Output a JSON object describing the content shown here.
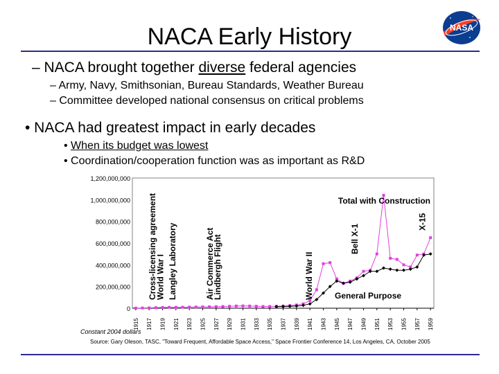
{
  "slide": {
    "title": "NACA Early History",
    "bullet1": {
      "pre": "– NACA brought together ",
      "underlined": "diverse",
      "post": " federal agencies"
    },
    "sub1": "– Army, Navy, Smithsonian, Bureau Standards, Weather Bureau",
    "sub2": "– Committee developed national consensus on critical problems",
    "bullet2": "• NACA had greatest impact in early decades",
    "sub3": {
      "pre": "• ",
      "underlined": "When its budget was lowest"
    },
    "sub4": "• Coordination/cooperation function was as important as R&D",
    "footer_note": "Constant 2004 dollars",
    "source": "Source: Gary Oleson, TASC, \"Toward Frequent, Affordable Space Access,\" Space Frontier Conference 14, Los Angeles, CA, October 2005",
    "logo_text": "NASA"
  },
  "colors": {
    "rule": "#2b2b8c",
    "total_series": "#e040e0",
    "general_series": "#000000",
    "logo_blue": "#0b3d91",
    "logo_red": "#fc3d21"
  },
  "chart_data": {
    "type": "line",
    "ylim": [
      0,
      1200000000
    ],
    "xlim": [
      1915,
      1959
    ],
    "yticks": [
      "0",
      "200,000,000",
      "400,000,000",
      "600,000,000",
      "800,000,000",
      "1,000,000,000",
      "1,200,000,000"
    ],
    "ytick_values": [
      0,
      200000000,
      400000000,
      600000000,
      800000000,
      1000000000,
      1200000000
    ],
    "xticks": [
      "1915",
      "1917",
      "1919",
      "1921",
      "1923",
      "1925",
      "1927",
      "1929",
      "1931",
      "1933",
      "1935",
      "1937",
      "1939",
      "1941",
      "1943",
      "1945",
      "1947",
      "1949",
      "1951",
      "1953",
      "1955",
      "1957",
      "1959"
    ],
    "xtick_values": [
      1915,
      1917,
      1919,
      1921,
      1923,
      1925,
      1927,
      1929,
      1931,
      1933,
      1935,
      1937,
      1939,
      1941,
      1943,
      1945,
      1947,
      1949,
      1951,
      1953,
      1955,
      1957,
      1959
    ],
    "series": [
      {
        "name": "Total with Construction",
        "marker": "square",
        "x": [
          1915,
          1916,
          1917,
          1918,
          1919,
          1920,
          1921,
          1922,
          1923,
          1924,
          1925,
          1926,
          1927,
          1928,
          1929,
          1930,
          1931,
          1932,
          1933,
          1934,
          1935,
          1936,
          1937,
          1938,
          1939,
          1940,
          1941,
          1942,
          1943,
          1944,
          1945,
          1946,
          1947,
          1948,
          1949,
          1950,
          1951,
          1952,
          1953,
          1954,
          1955,
          1956,
          1957,
          1958,
          1959
        ],
        "values": [
          1000000,
          2000000,
          3000000,
          5000000,
          7000000,
          8000000,
          8000000,
          9000000,
          10000000,
          11000000,
          12000000,
          13000000,
          14000000,
          16000000,
          18000000,
          20000000,
          21000000,
          20000000,
          18000000,
          16000000,
          16000000,
          18000000,
          20000000,
          24000000,
          30000000,
          40000000,
          70000000,
          170000000,
          410000000,
          420000000,
          270000000,
          230000000,
          250000000,
          280000000,
          340000000,
          350000000,
          500000000,
          1040000000,
          460000000,
          450000000,
          400000000,
          380000000,
          490000000,
          500000000,
          650000000
        ]
      },
      {
        "name": "General Purpose",
        "marker": "diamond",
        "x": [
          1936,
          1937,
          1938,
          1939,
          1940,
          1941,
          1942,
          1943,
          1944,
          1945,
          1946,
          1947,
          1948,
          1949,
          1950,
          1951,
          1952,
          1953,
          1954,
          1955,
          1956,
          1957,
          1958,
          1959
        ],
        "values": [
          14000000,
          16000000,
          18000000,
          20000000,
          26000000,
          40000000,
          80000000,
          140000000,
          200000000,
          250000000,
          230000000,
          240000000,
          270000000,
          300000000,
          340000000,
          340000000,
          370000000,
          360000000,
          350000000,
          350000000,
          360000000,
          380000000,
          490000000,
          500000000
        ]
      }
    ],
    "annotations": [
      {
        "text": "Cross-licensing agreement",
        "year": 1917.5
      },
      {
        "text": "World War I",
        "year": 1918.7
      },
      {
        "text": "Langley Laboratory",
        "year": 1920.5
      },
      {
        "text": "Air Commerce Act",
        "year": 1926.1
      },
      {
        "text": "Lindbergh Flight",
        "year": 1927.2
      },
      {
        "text": "World War II",
        "year": 1940.9
      },
      {
        "text": "Bell X-1",
        "year": 1947.7
      },
      {
        "text": "X-15",
        "year": 1957.8
      }
    ]
  }
}
